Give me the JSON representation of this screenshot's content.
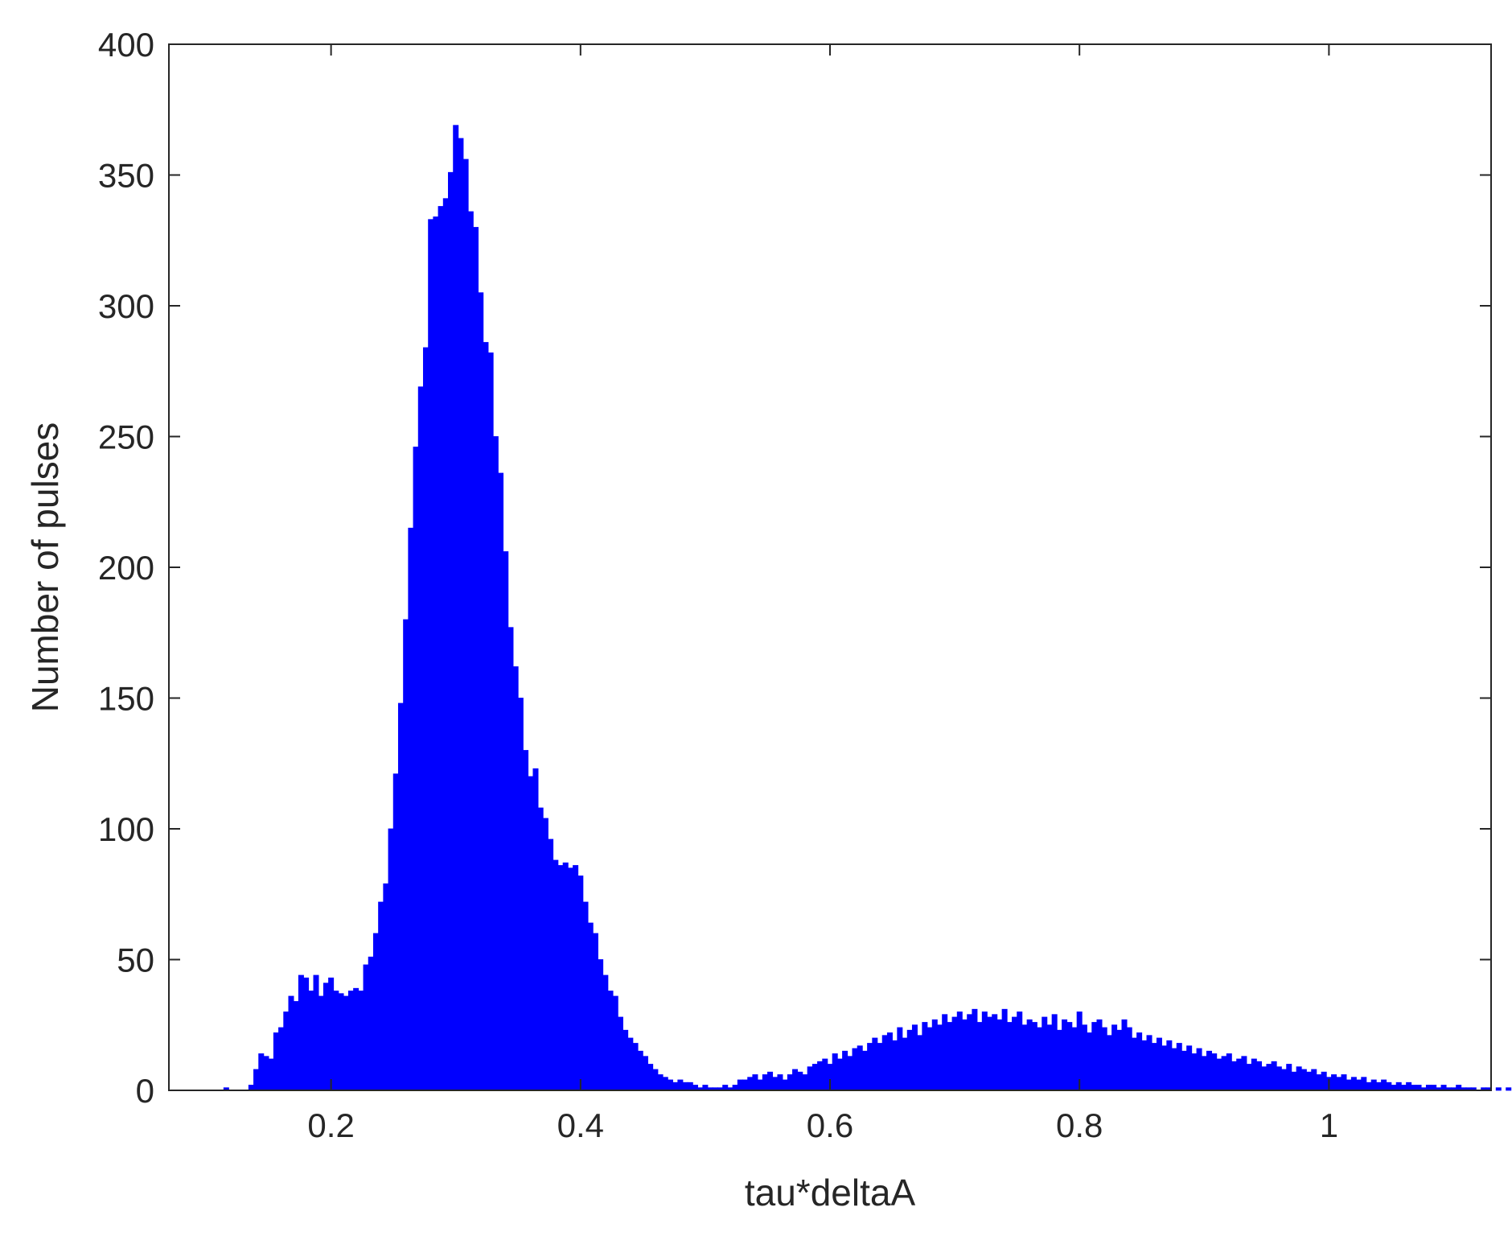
{
  "colors": {
    "bar": "#0000ff",
    "axis": "#262626",
    "background": "#ffffff"
  },
  "chart_data": {
    "type": "bar",
    "title": "",
    "xlabel": "tau*deltaA",
    "ylabel": "Number of pulses",
    "xlim": [
      0.07,
      1.13
    ],
    "ylim": [
      0,
      400
    ],
    "xticks": [
      0.2,
      0.4,
      0.6,
      0.8,
      1.0
    ],
    "xtick_labels": [
      "0.2",
      "0.4",
      "0.6",
      "0.8",
      "1"
    ],
    "yticks": [
      0,
      50,
      100,
      150,
      200,
      250,
      300,
      350,
      400
    ],
    "ytick_labels": [
      "0",
      "50",
      "100",
      "150",
      "200",
      "250",
      "300",
      "350",
      "400"
    ],
    "grid": false,
    "legend": "none",
    "bin_width": 0.004,
    "x_start": 0.114,
    "values": [
      1,
      0,
      0,
      0,
      0,
      2,
      8,
      14,
      13,
      12,
      22,
      24,
      30,
      36,
      34,
      44,
      43,
      38,
      44,
      36,
      41,
      43,
      38,
      37,
      36,
      38,
      39,
      38,
      48,
      51,
      60,
      72,
      79,
      100,
      121,
      148,
      180,
      215,
      246,
      269,
      284,
      333,
      334,
      338,
      341,
      351,
      369,
      364,
      356,
      336,
      330,
      305,
      286,
      282,
      250,
      236,
      206,
      177,
      162,
      150,
      130,
      120,
      123,
      108,
      104,
      96,
      88,
      86,
      87,
      85,
      86,
      82,
      72,
      64,
      60,
      50,
      44,
      38,
      36,
      28,
      23,
      20,
      18,
      15,
      13,
      10,
      8,
      6,
      5,
      4,
      3,
      4,
      3,
      3,
      2,
      1,
      2,
      1,
      1,
      1,
      2,
      1,
      2,
      4,
      4,
      5,
      6,
      4,
      6,
      7,
      5,
      6,
      4,
      6,
      8,
      7,
      6,
      9,
      10,
      11,
      12,
      10,
      14,
      12,
      15,
      13,
      16,
      17,
      15,
      18,
      20,
      18,
      21,
      22,
      19,
      24,
      20,
      23,
      25,
      21,
      26,
      24,
      27,
      25,
      29,
      26,
      28,
      30,
      27,
      29,
      31,
      26,
      30,
      28,
      29,
      27,
      31,
      26,
      28,
      30,
      25,
      27,
      26,
      24,
      28,
      25,
      29,
      23,
      27,
      26,
      24,
      30,
      25,
      22,
      26,
      27,
      24,
      21,
      25,
      23,
      27,
      24,
      20,
      22,
      19,
      21,
      18,
      20,
      17,
      19,
      16,
      18,
      15,
      17,
      14,
      16,
      13,
      15,
      14,
      12,
      13,
      14,
      11,
      12,
      13,
      10,
      12,
      11,
      9,
      10,
      11,
      9,
      8,
      10,
      7,
      9,
      8,
      7,
      8,
      6,
      7,
      5,
      6,
      5,
      6,
      4,
      5,
      4,
      5,
      3,
      4,
      3,
      4,
      3,
      2,
      3,
      2,
      3,
      2,
      2,
      1,
      2,
      2,
      1,
      2,
      1,
      1,
      2,
      1,
      1,
      1,
      0,
      1,
      1,
      0,
      1,
      0,
      1,
      0,
      1,
      1,
      0,
      0,
      1,
      0,
      0,
      1,
      0,
      0,
      1,
      0,
      0,
      0,
      0,
      1
    ]
  }
}
